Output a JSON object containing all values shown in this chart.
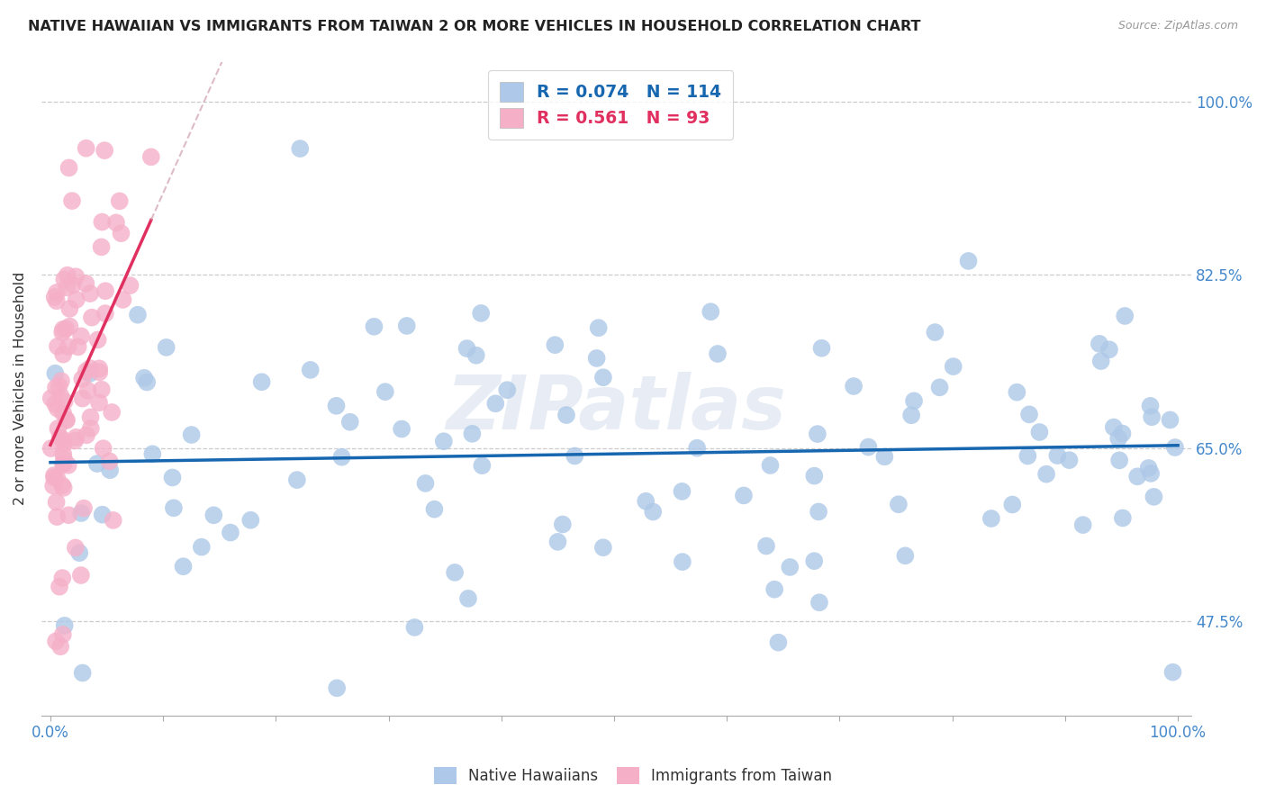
{
  "title": "NATIVE HAWAIIAN VS IMMIGRANTS FROM TAIWAN 2 OR MORE VEHICLES IN HOUSEHOLD CORRELATION CHART",
  "source_text": "Source: ZipAtlas.com",
  "ylabel": "2 or more Vehicles in Household",
  "x_min": 0.0,
  "x_max": 1.0,
  "y_min": 0.38,
  "y_max": 1.04,
  "x_tick_positions": [
    0.0,
    0.1,
    0.2,
    0.3,
    0.4,
    0.5,
    0.6,
    0.7,
    0.8,
    0.9,
    1.0
  ],
  "x_tick_labels": [
    "0.0%",
    "",
    "",
    "",
    "",
    "",
    "",
    "",
    "",
    "",
    "100.0%"
  ],
  "y_tick_positions": [
    0.475,
    0.65,
    0.825,
    1.0
  ],
  "y_tick_labels": [
    "47.5%",
    "65.0%",
    "82.5%",
    "100.0%"
  ],
  "blue_R": 0.074,
  "blue_N": 114,
  "pink_R": 0.561,
  "pink_N": 93,
  "legend_label_blue": "Native Hawaiians",
  "legend_label_pink": "Immigrants from Taiwan",
  "blue_color": "#adc8e8",
  "blue_line_color": "#1666b0",
  "pink_color": "#f5b0c8",
  "pink_line_color": "#e03060",
  "pink_dash_color": "#d0a0b0",
  "watermark": "ZIPatlas",
  "blue_seed": 101,
  "pink_seed": 202
}
